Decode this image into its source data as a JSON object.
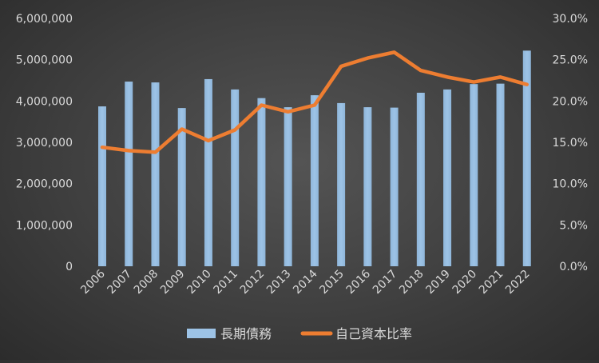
{
  "chart_data": {
    "type": "bar",
    "categories": [
      "2006",
      "2007",
      "2008",
      "2009",
      "2010",
      "2011",
      "2012",
      "2013",
      "2014",
      "2015",
      "2016",
      "2017",
      "2018",
      "2019",
      "2020",
      "2021",
      "2022"
    ],
    "series": [
      {
        "name": "長期債務",
        "type": "bar",
        "axis": "left",
        "color": "#9dc3e6",
        "values": [
          3870000,
          4470000,
          4450000,
          3830000,
          4530000,
          4280000,
          4070000,
          3850000,
          4140000,
          3950000,
          3850000,
          3840000,
          4200000,
          4280000,
          4410000,
          4420000,
          5220000
        ]
      },
      {
        "name": "自己資本比率",
        "type": "line",
        "axis": "right",
        "color": "#ed7d31",
        "values": [
          14.4,
          14.0,
          13.8,
          16.6,
          15.2,
          16.5,
          19.5,
          18.7,
          19.5,
          24.2,
          25.2,
          25.9,
          23.7,
          22.9,
          22.3,
          22.9,
          22.0
        ]
      }
    ],
    "y_left": {
      "min": 0,
      "max": 6000000,
      "ticks": [
        0,
        1000000,
        2000000,
        3000000,
        4000000,
        5000000,
        6000000
      ],
      "tick_labels": [
        "0",
        "1,000,000",
        "2,000,000",
        "3,000,000",
        "4,000,000",
        "5,000,000",
        "6,000,000"
      ]
    },
    "y_right": {
      "min": 0,
      "max": 30,
      "ticks": [
        0,
        5,
        10,
        15,
        20,
        25,
        30
      ],
      "tick_labels": [
        "0.0%",
        "5.0%",
        "10.0%",
        "15.0%",
        "20.0%",
        "25.0%",
        "30.0%"
      ]
    },
    "title": "",
    "xlabel": "",
    "ylabel": "",
    "grid": false,
    "legend": {
      "position": "bottom",
      "items": [
        {
          "label": "長期債務",
          "kind": "bar",
          "color": "#9dc3e6"
        },
        {
          "label": "自己資本比率",
          "kind": "line",
          "color": "#ed7d31"
        }
      ]
    }
  }
}
